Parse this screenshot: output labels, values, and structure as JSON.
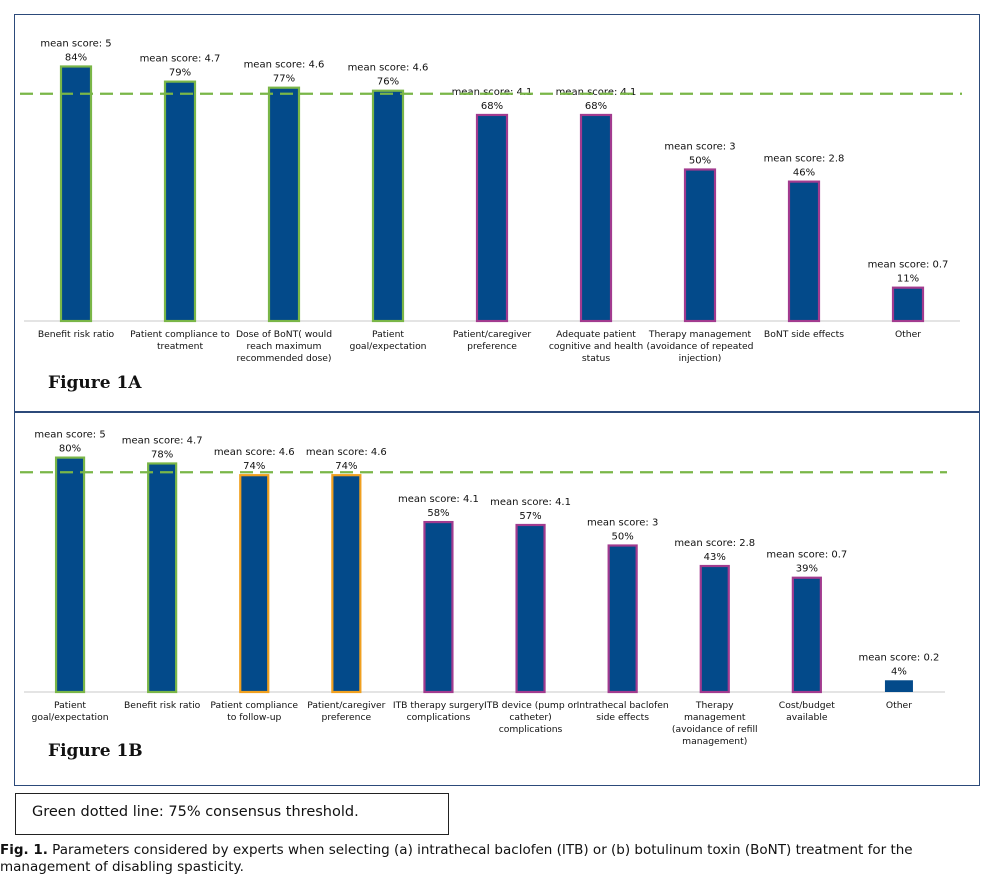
{
  "chart_data": [
    {
      "type": "bar",
      "title": "Figure 1A",
      "threshold": 75,
      "ylim": [
        0,
        100
      ],
      "categories": [
        [
          "Benefit risk ratio"
        ],
        [
          "Patient compliance to",
          "treatment"
        ],
        [
          "Dose of BoNT( would",
          "reach maximum",
          "recommended dose)"
        ],
        [
          "Patient",
          "goal/expectation"
        ],
        [
          "Patient/caregiver",
          "preference"
        ],
        [
          "Adequate patient",
          "cognitive and health",
          "status"
        ],
        [
          "Therapy management",
          "(avoidance of repeated",
          "injection)"
        ],
        [
          "BoNT side effects"
        ],
        [
          "Other"
        ]
      ],
      "values": [
        84,
        79,
        77,
        76,
        68,
        68,
        50,
        46,
        11
      ],
      "value_labels": [
        "84%",
        "79%",
        "77%",
        "76%",
        "68%",
        "68%",
        "50%",
        "46%",
        "11%"
      ],
      "mean_labels": [
        "mean score: 5",
        "mean score: 4.7",
        "mean score: 4.6",
        "mean score: 4.6",
        "mean score: 4.1",
        "mean score: 4.1",
        "mean score: 3",
        "mean score: 2.8",
        "mean score: 0.7"
      ],
      "outline": [
        "green",
        "green",
        "green",
        "green",
        "purple",
        "purple",
        "purple",
        "purple",
        "purple"
      ]
    },
    {
      "type": "bar",
      "title": "Figure 1B",
      "threshold": 75,
      "ylim": [
        0,
        100
      ],
      "categories": [
        [
          "Patient",
          "goal/expectation"
        ],
        [
          "Benefit risk ratio"
        ],
        [
          "Patient compliance",
          "to follow-up"
        ],
        [
          "Patient/caregiver",
          "preference"
        ],
        [
          "ITB therapy surgery",
          "complications"
        ],
        [
          "ITB device (pump or",
          "catheter)",
          "complications"
        ],
        [
          "Intrathecal baclofen",
          "side effects"
        ],
        [
          "Therapy",
          "management",
          "(avoidance of refill",
          "management)"
        ],
        [
          "Cost/budget",
          "available"
        ],
        [
          "Other"
        ]
      ],
      "values": [
        80,
        78,
        74,
        74,
        58,
        57,
        50,
        43,
        39,
        4
      ],
      "value_labels": [
        "80%",
        "78%",
        "74%",
        "74%",
        "58%",
        "57%",
        "50%",
        "43%",
        "39%",
        "4%"
      ],
      "mean_labels": [
        "mean score: 5",
        "mean score: 4.7",
        "mean score: 4.6",
        "mean score: 4.6",
        "mean score: 4.1",
        "mean score: 4.1",
        "mean score: 3",
        "mean score: 2.8",
        "mean score: 0.7",
        "mean score: 0.2"
      ],
      "outline": [
        "green",
        "green",
        "orange",
        "orange",
        "purple",
        "purple",
        "purple",
        "purple",
        "purple",
        "none"
      ]
    }
  ],
  "colors": {
    "bar_fill": "#034a8a",
    "green": "#7ab648",
    "purple": "#a23b8f",
    "orange": "#f0a020",
    "threshold": "#7ab648",
    "axis": "#c8c8c8"
  },
  "legend": {
    "text": "Green dotted line: 75% consensus threshold."
  },
  "caption": {
    "label": "Fig. 1.",
    "text": " Parameters considered by experts when selecting (a) intrathecal baclofen (ITB) or (b) botulinum toxin (BoNT) treatment for the management of disabling spasticity."
  }
}
